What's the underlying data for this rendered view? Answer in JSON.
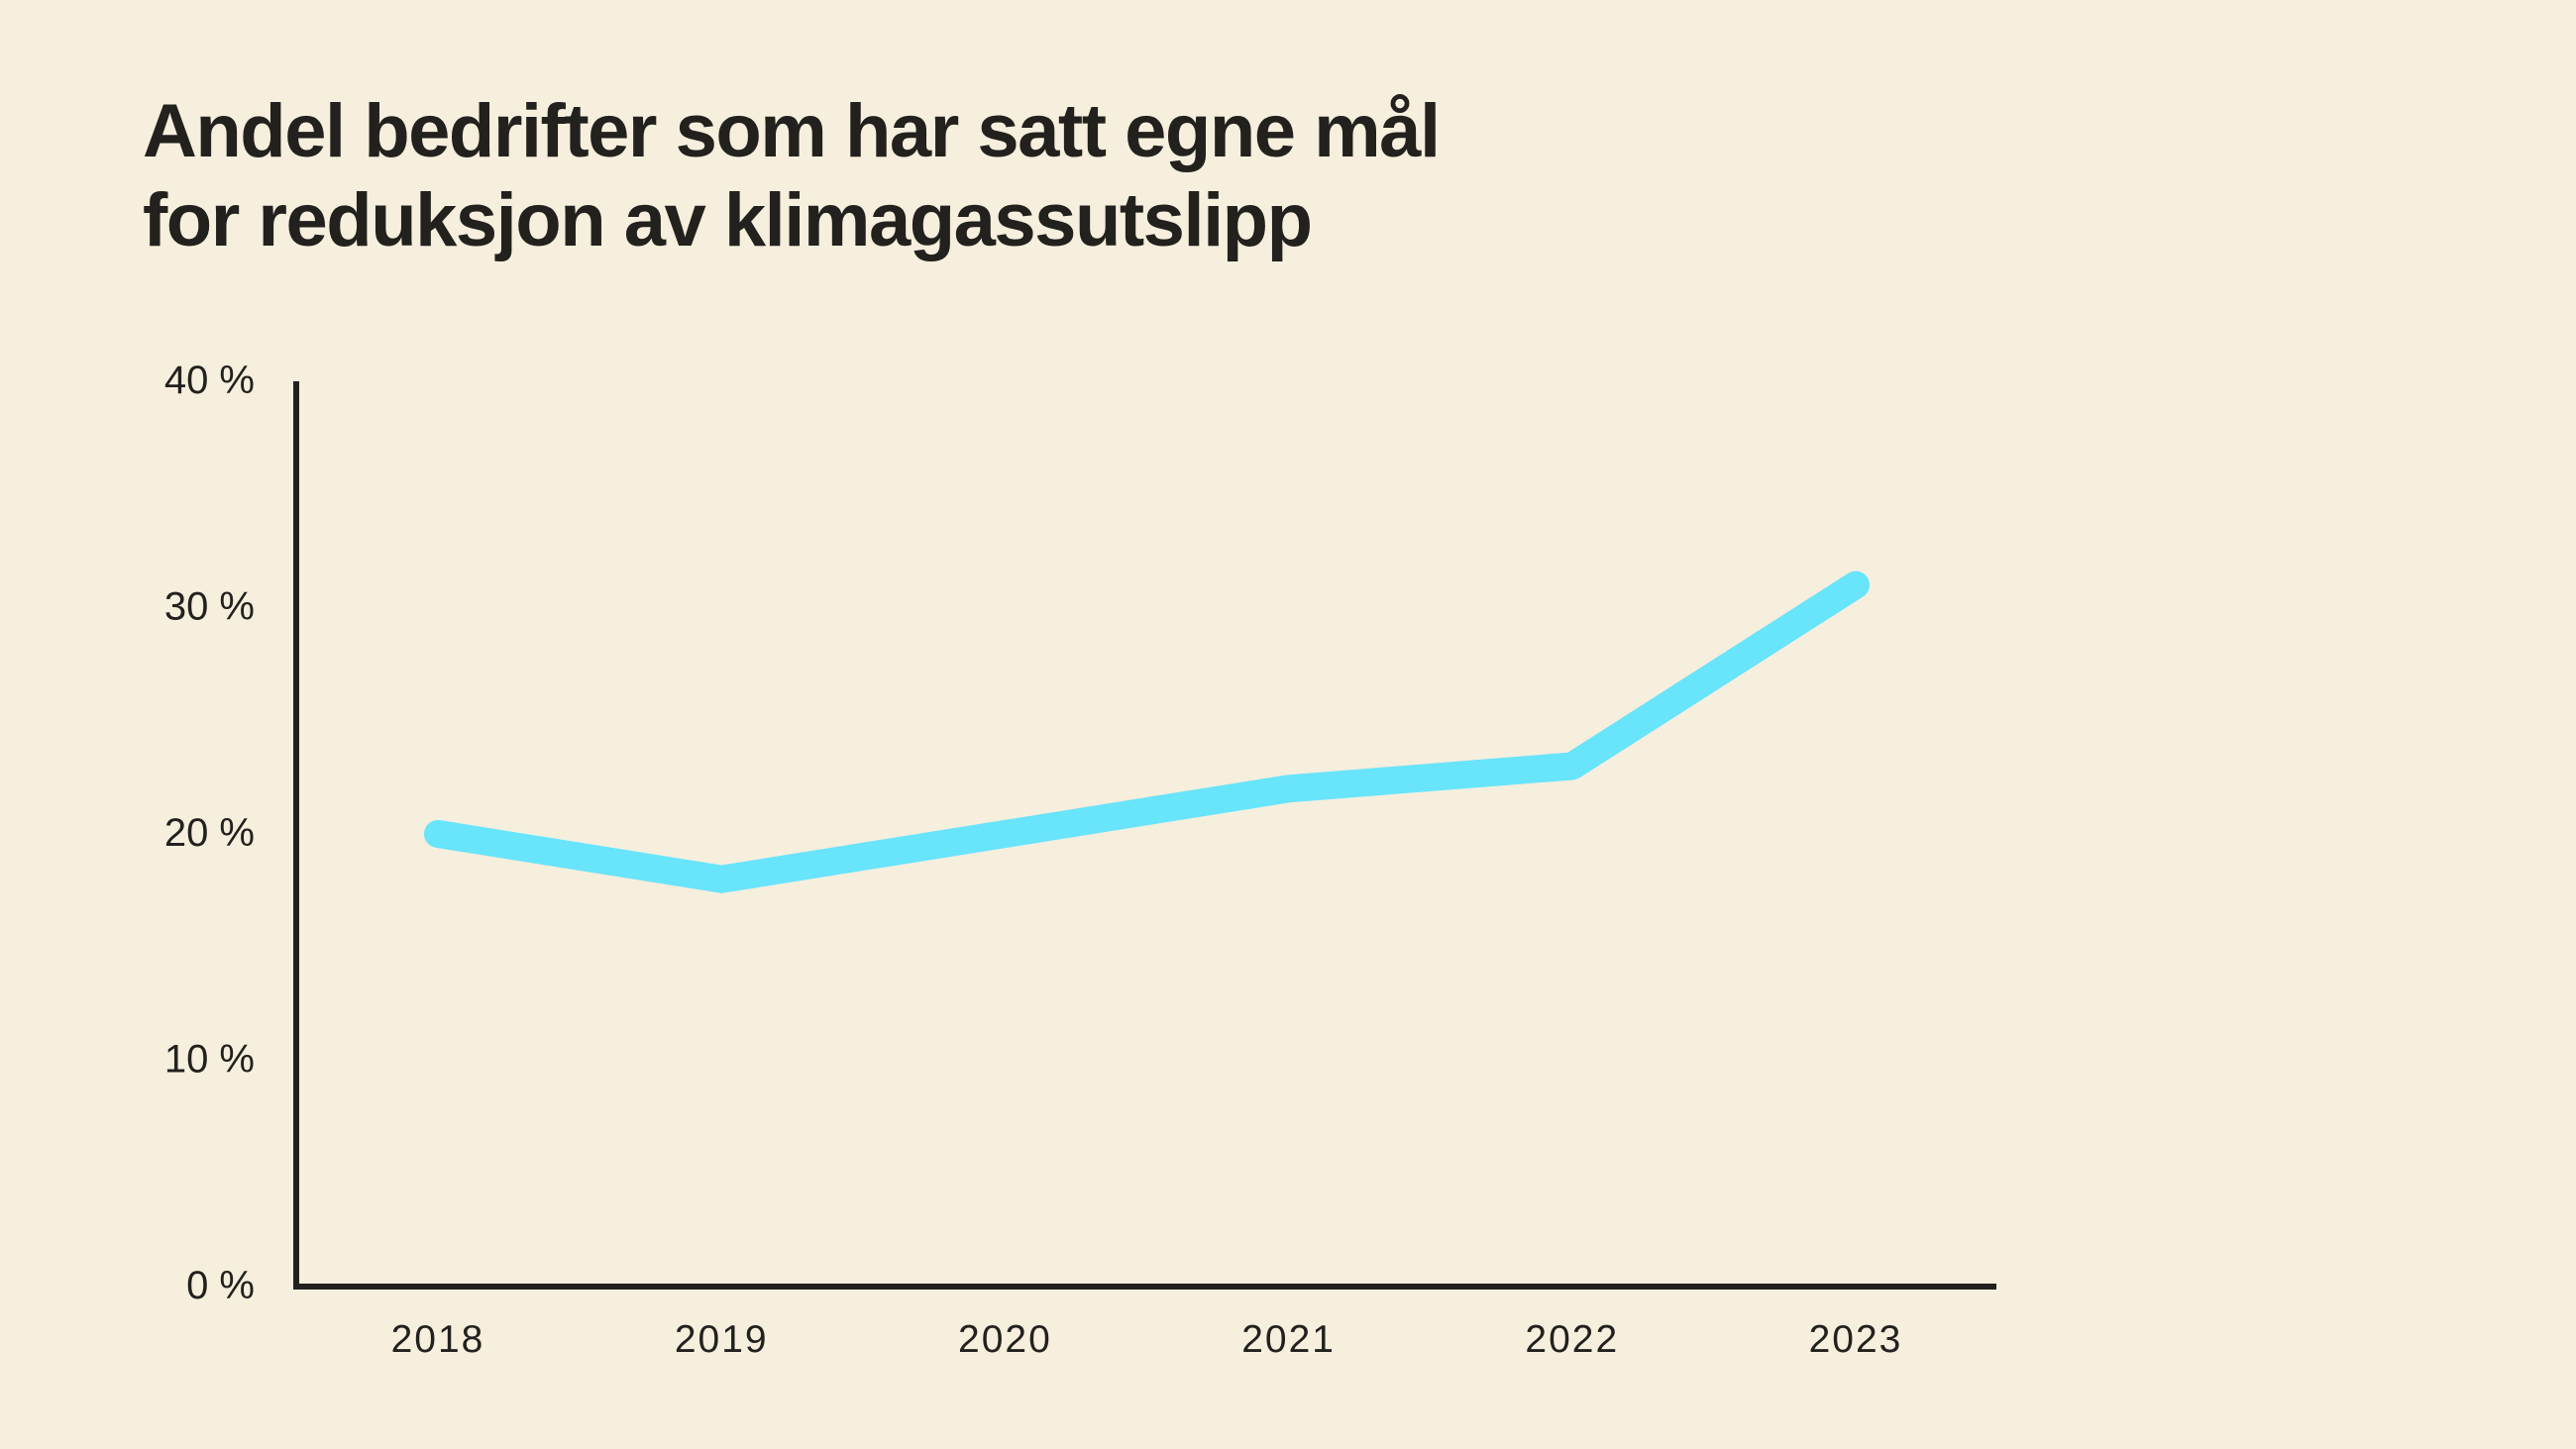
{
  "page": {
    "background_color": "#F6EFDE",
    "text_color": "#22211D"
  },
  "header": {
    "title_line1": "Andel bedrifter som har satt egne mål",
    "title_line2": "for reduksjon av klimagassutslipp"
  },
  "chart_data": {
    "type": "line",
    "title": "Andel bedrifter som har satt egne mål for reduksjon av klimagassutslipp",
    "categories": [
      "2018",
      "2019",
      "2020",
      "2021",
      "2022",
      "2023"
    ],
    "values": [
      20,
      18,
      20,
      22,
      23,
      31
    ],
    "unit": "%",
    "xlabel": "",
    "ylabel": "",
    "ylim": [
      0,
      40
    ],
    "ytick_values": [
      0,
      10,
      20,
      30,
      40
    ],
    "ytick_labels": [
      "0 %",
      "10 %",
      "20 %",
      "30 %",
      "40 %"
    ],
    "grid": false,
    "legend_position": "none",
    "line_color": "#68E4FB",
    "axis_color": "#22211D",
    "background_color": "#F6EFDE"
  }
}
